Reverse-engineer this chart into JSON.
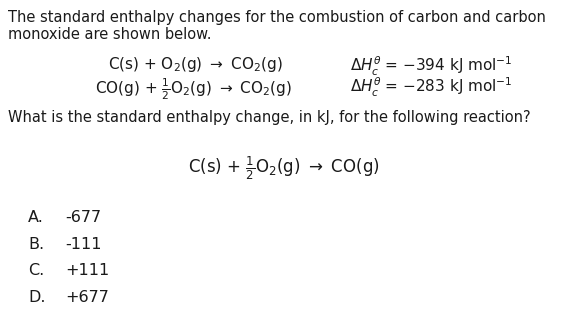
{
  "bg_color": "#ffffff",
  "text_color": "#1a1a1a",
  "intro_line1": "The standard enthalpy changes for the combustion of carbon and carbon",
  "intro_line2": "monoxide are shown below.",
  "eq1_left": "C(s) + O$_2$(g) $\\rightarrow$ CO$_2$(g)",
  "eq1_right": "$\\Delta H_c^{\\theta}$ = −394 kJ mol$^{-1}$",
  "eq2_left": "CO(g) + $\\frac{1}{2}$O$_2$(g) $\\rightarrow$ CO$_2$(g)",
  "eq2_right": "$\\Delta H_c^{\\theta}$ = −283 kJ mol$^{-1}$",
  "question": "What is the standard enthalpy change, in kJ, for the following reaction?",
  "reaction": "C(s) + $\\frac{1}{2}$O$_2$(g) $\\rightarrow$ CO(g)",
  "options": [
    [
      "A.",
      "-677"
    ],
    [
      "B.",
      "-111"
    ],
    [
      "C.",
      "+111"
    ],
    [
      "D.",
      "+677"
    ]
  ],
  "font_size_intro": 10.5,
  "font_size_eq": 11.0,
  "font_size_question": 10.5,
  "font_size_reaction": 12.0,
  "font_size_options": 11.5
}
